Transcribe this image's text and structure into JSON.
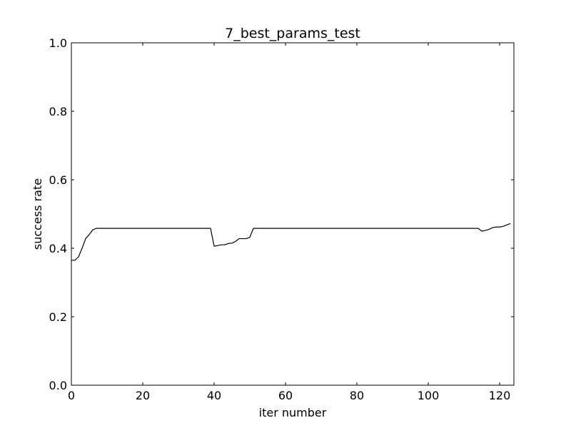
{
  "chart_data": {
    "type": "line",
    "title": "7_best_params_test",
    "xlabel": "iter number",
    "ylabel": "success rate",
    "xlim": [
      0,
      124
    ],
    "ylim": [
      0.0,
      1.0
    ],
    "xticks": [
      0,
      20,
      40,
      60,
      80,
      100,
      120
    ],
    "xtick_labels": [
      "0",
      "20",
      "40",
      "60",
      "80",
      "100",
      "120"
    ],
    "yticks": [
      0.0,
      0.2,
      0.4,
      0.6,
      0.8,
      1.0
    ],
    "ytick_labels": [
      "0.0",
      "0.2",
      "0.4",
      "0.6",
      "0.8",
      "1.0"
    ],
    "grid": false,
    "legend": "none",
    "series": [
      {
        "color": "#000000",
        "x": [
          0,
          1,
          2,
          3,
          4,
          5,
          6,
          7,
          8,
          10,
          15,
          20,
          25,
          30,
          35,
          39,
          40,
          41,
          42,
          43,
          44,
          45,
          46,
          47,
          48,
          49,
          50,
          51,
          55,
          60,
          70,
          80,
          90,
          100,
          110,
          114,
          115,
          116,
          117,
          118,
          119,
          120,
          121,
          122,
          123
        ],
        "y": [
          0.365,
          0.365,
          0.375,
          0.4,
          0.428,
          0.44,
          0.454,
          0.458,
          0.458,
          0.458,
          0.458,
          0.458,
          0.458,
          0.458,
          0.458,
          0.458,
          0.406,
          0.408,
          0.41,
          0.41,
          0.414,
          0.415,
          0.42,
          0.428,
          0.428,
          0.428,
          0.432,
          0.458,
          0.458,
          0.458,
          0.458,
          0.458,
          0.458,
          0.458,
          0.458,
          0.458,
          0.45,
          0.452,
          0.455,
          0.46,
          0.462,
          0.462,
          0.464,
          0.468,
          0.472
        ]
      }
    ]
  }
}
